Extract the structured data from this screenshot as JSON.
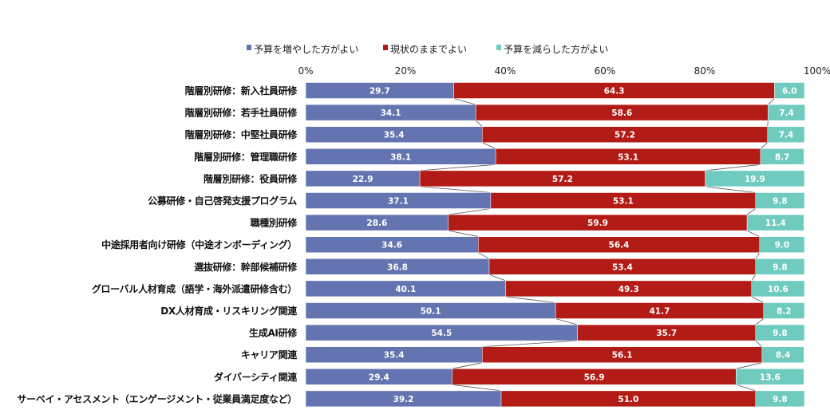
{
  "chart_data": {
    "type": "bar",
    "orientation": "horizontal",
    "stacked": "percent",
    "categories": [
      "階層別研修：新入社員研修",
      "階層別研修：若手社員研修",
      "階層別研修：中堅社員研修",
      "階層別研修：管理職研修",
      "階層別研修：役員研修",
      "公募研修・自己啓発支援プログラム",
      "職種別研修",
      "中途採用者向け研修（中途オンボーディング）",
      "選抜研修：幹部候補研修",
      "グローバル人材育成（語学・海外派遣研修含む）",
      "DX人材育成・リスキリング関連",
      "生成AI研修",
      "キャリア関連",
      "ダイバーシティ関連",
      "サーベイ・アセスメント（エンゲージメント・従業員満足度など）"
    ],
    "series": [
      {
        "name": "予算を増やした方がよい",
        "color": "#6474B0",
        "values": [
          29.7,
          34.1,
          35.4,
          38.1,
          22.9,
          37.1,
          28.6,
          34.6,
          36.8,
          40.1,
          50.1,
          54.5,
          35.4,
          29.4,
          39.2
        ]
      },
      {
        "name": "現状のままでよい",
        "color": "#B31B16",
        "values": [
          64.3,
          58.6,
          57.2,
          53.1,
          57.2,
          53.1,
          59.9,
          56.4,
          53.4,
          49.3,
          41.7,
          35.7,
          56.1,
          56.9,
          51.0
        ]
      },
      {
        "name": "予算を減らした方がよい",
        "color": "#6ECBBE",
        "values": [
          6.0,
          7.4,
          7.4,
          8.7,
          19.9,
          9.8,
          11.4,
          9.0,
          9.8,
          10.6,
          8.2,
          9.8,
          8.4,
          13.6,
          9.8
        ]
      }
    ],
    "xticks": [
      "0%",
      "20%",
      "40%",
      "60%",
      "80%",
      "100%"
    ],
    "xlim": [
      0,
      100
    ],
    "legend_position": "top",
    "grid": false,
    "series_lines": true
  }
}
